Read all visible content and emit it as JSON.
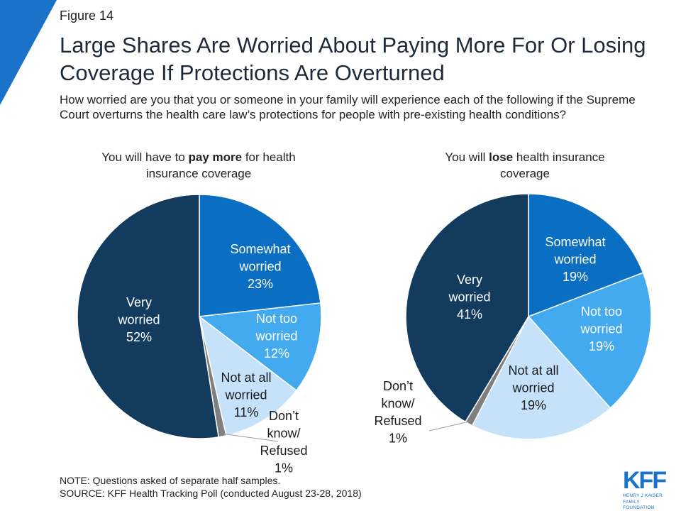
{
  "figure_label": "Figure 14",
  "title": "Large Shares Are Worried About Paying More For Or Losing Coverage If Protections Are Overturned",
  "question": "How worried are you that you or someone in your family will experience each of the following if the Supreme Court overturns the health care law’s protections for people with pre-existing health conditions?",
  "note": "NOTE: Questions asked of separate half samples.",
  "source": "SOURCE: KFF Health Tracking Poll (conducted August 23-28, 2018)",
  "logo": {
    "mark": "KFF",
    "line1": "HENRY J KAISER",
    "line2": "FAMILY FOUNDATION"
  },
  "colors": {
    "very_worried": "#123b5e",
    "somewhat_worried": "#0a6fc2",
    "not_too_worried": "#44aaf0",
    "not_at_all_worried": "#c5e2fa",
    "dont_know": "#7f7f7f",
    "accent": "#1a73c8"
  },
  "chart_data": [
    {
      "type": "pie",
      "subtitle_pre": "You will have to ",
      "subtitle_bold": "pay more",
      "subtitle_post": " for health insurance coverage",
      "slices": [
        {
          "lines": [
            "Somewhat",
            "worried",
            "23%"
          ],
          "value": 23,
          "color": "#0a6fc2",
          "label_color": "#ffffff"
        },
        {
          "lines": [
            "Not too",
            "worried",
            "12%"
          ],
          "value": 12,
          "color": "#44aaf0",
          "label_color": "#ffffff"
        },
        {
          "lines": [
            "Not at all",
            "worried",
            "11%"
          ],
          "value": 11,
          "color": "#c5e2fa",
          "label_color": "#1a1a1a"
        },
        {
          "lines": [
            "Don’t",
            "know/",
            "Refused",
            "1%"
          ],
          "value": 1,
          "color": "#7f7f7f",
          "label_color": "#1a1a1a",
          "leader": true
        },
        {
          "lines": [
            "Very",
            "worried",
            "52%"
          ],
          "value": 52,
          "color": "#123b5e",
          "label_color": "#ffffff"
        }
      ]
    },
    {
      "type": "pie",
      "subtitle_pre": "You will ",
      "subtitle_bold": "lose",
      "subtitle_post": " health insurance coverage",
      "slices": [
        {
          "lines": [
            "Somewhat",
            "worried",
            "19%"
          ],
          "value": 19,
          "color": "#0a6fc2",
          "label_color": "#ffffff"
        },
        {
          "lines": [
            "Not too",
            "worried",
            "19%"
          ],
          "value": 19,
          "color": "#44aaf0",
          "label_color": "#ffffff"
        },
        {
          "lines": [
            "Not at all",
            "worried",
            "19%"
          ],
          "value": 19,
          "color": "#c5e2fa",
          "label_color": "#1a1a1a"
        },
        {
          "lines": [
            "Don’t",
            "know/",
            "Refused",
            "1%"
          ],
          "value": 1,
          "color": "#7f7f7f",
          "label_color": "#1a1a1a",
          "leader": true
        },
        {
          "lines": [
            "Very",
            "worried",
            "41%"
          ],
          "value": 41,
          "color": "#123b5e",
          "label_color": "#ffffff"
        }
      ]
    }
  ]
}
